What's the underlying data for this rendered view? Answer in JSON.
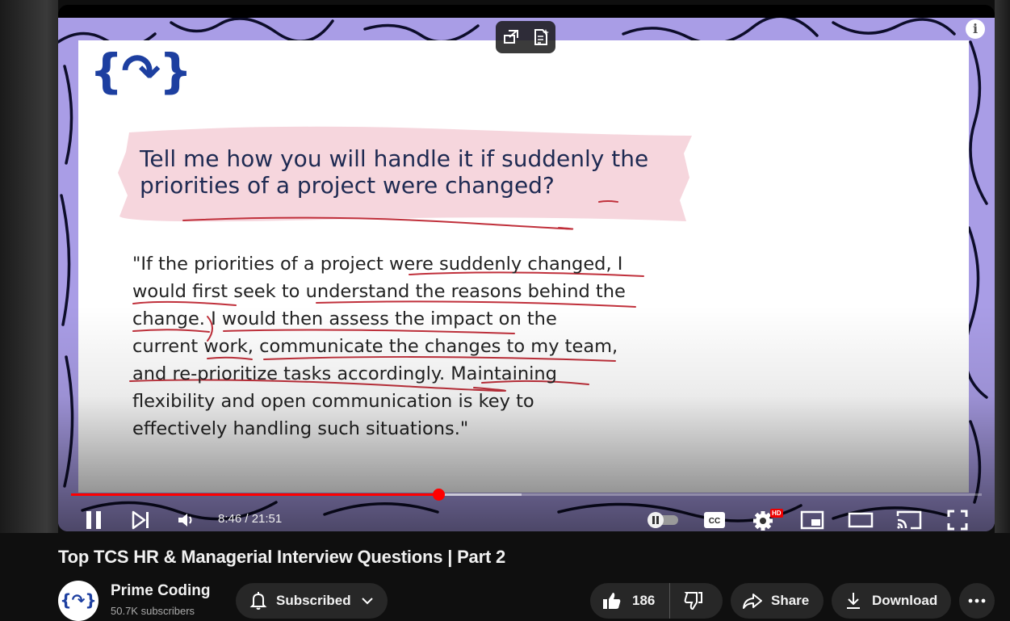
{
  "video": {
    "slide": {
      "logo": "{↷}",
      "question": "Tell me how you will handle it if suddenly the priorities of a project were changed?",
      "answer_lines": [
        "\"If the priorities of a project were suddenly changed, I",
        "would first seek to understand the reasons behind the",
        "change. I would then assess the impact on the",
        "current work, communicate the changes to my team,",
        "and re-prioritize tasks accordingly. Maintaining",
        "flexibility and open communication is key to",
        "effectively handling such situations.\""
      ]
    },
    "info_label": "i",
    "progress": {
      "played_fraction": 0.403,
      "buffered_fraction": 0.495
    },
    "time": "8:46 / 21:51",
    "quality_badge": "HD",
    "accent": "#ff0000"
  },
  "title": "Top TCS HR & Managerial Interview Questions | Part 2",
  "channel": {
    "name": "Prime Coding",
    "subscribers": "50.7K subscribers",
    "avatar_text": "{↷}"
  },
  "actions": {
    "subscribe_label": "Subscribed",
    "like_count": "186",
    "share_label": "Share",
    "download_label": "Download"
  },
  "icons": [
    "swap-icon",
    "notes-icon",
    "info-icon",
    "pause-icon",
    "next-icon",
    "volume-icon",
    "autoplay-toggle-icon",
    "captions-icon",
    "settings-icon",
    "miniplayer-icon",
    "theater-icon",
    "cast-icon",
    "fullscreen-icon",
    "bell-icon",
    "chevron-down-icon",
    "like-icon",
    "dislike-icon",
    "share-icon",
    "download-icon",
    "more-icon"
  ]
}
